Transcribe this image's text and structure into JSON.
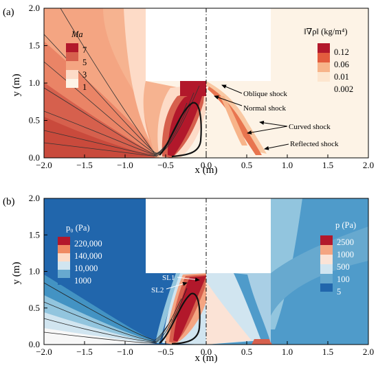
{
  "chart_data": [
    {
      "type": "heatmap",
      "panel_label": "(a)",
      "xlabel": "x (m)",
      "ylabel": "y (m)",
      "xlim": [
        -2.0,
        2.0
      ],
      "ylim": [
        0.0,
        2.0
      ],
      "x_ticks": [
        "−2.0",
        "−1.5",
        "−1.0",
        "−0.5",
        "0.0",
        "0.5",
        "1.0",
        "1.5",
        "2.0"
      ],
      "y_ticks": [
        "0.0",
        "0.5",
        "1.0",
        "1.5",
        "2.0"
      ],
      "symmetry_line_x": 0.0,
      "left_field": {
        "title": "Ma",
        "levels": [
          "7",
          "5",
          "3",
          "1"
        ],
        "colors": [
          "#b2182b",
          "#d6604d",
          "#f4a582",
          "#fddbc7",
          "#fdf3e6"
        ]
      },
      "right_field": {
        "title": "‖∇ρ‖ (kg/m⁴)",
        "levels": [
          "0.12",
          "0.06",
          "0.01",
          "0.002"
        ],
        "colors": [
          "#b2182b",
          "#e35c3e",
          "#f7b48a",
          "#fde6cf",
          "#fdf3e6"
        ]
      },
      "annotations": [
        "Oblique shock",
        "Normal shock",
        "Curved shock",
        "Reflected shock"
      ]
    },
    {
      "type": "heatmap",
      "panel_label": "(b)",
      "xlabel": "x (m)",
      "ylabel": "y (m)",
      "xlim": [
        -2.0,
        2.0
      ],
      "ylim": [
        0.0,
        2.0
      ],
      "x_ticks": [
        "−2.0",
        "−1.5",
        "−1.0",
        "−0.5",
        "0.0",
        "0.5",
        "1.0",
        "1.5",
        "2.0"
      ],
      "y_ticks": [
        "0.0",
        "0.5",
        "1.0",
        "1.5",
        "2.0"
      ],
      "symmetry_line_x": 0.0,
      "left_field": {
        "title": "p₀ (Pa)",
        "levels": [
          "220,000",
          "140,000",
          "10,000",
          "1000"
        ],
        "colors": [
          "#b2182b",
          "#ef8a62",
          "#fddbc7",
          "#d1e5f0",
          "#67a9cf",
          "#2166ac"
        ]
      },
      "right_field": {
        "title": "p (Pa)",
        "levels": [
          "2500",
          "1000",
          "500",
          "100",
          "5"
        ],
        "colors": [
          "#b2182b",
          "#f4a582",
          "#fbe3d6",
          "#d1e5f0",
          "#67a9cf",
          "#2166ac"
        ]
      },
      "annotations": [
        "SL1",
        "SL2"
      ]
    }
  ]
}
